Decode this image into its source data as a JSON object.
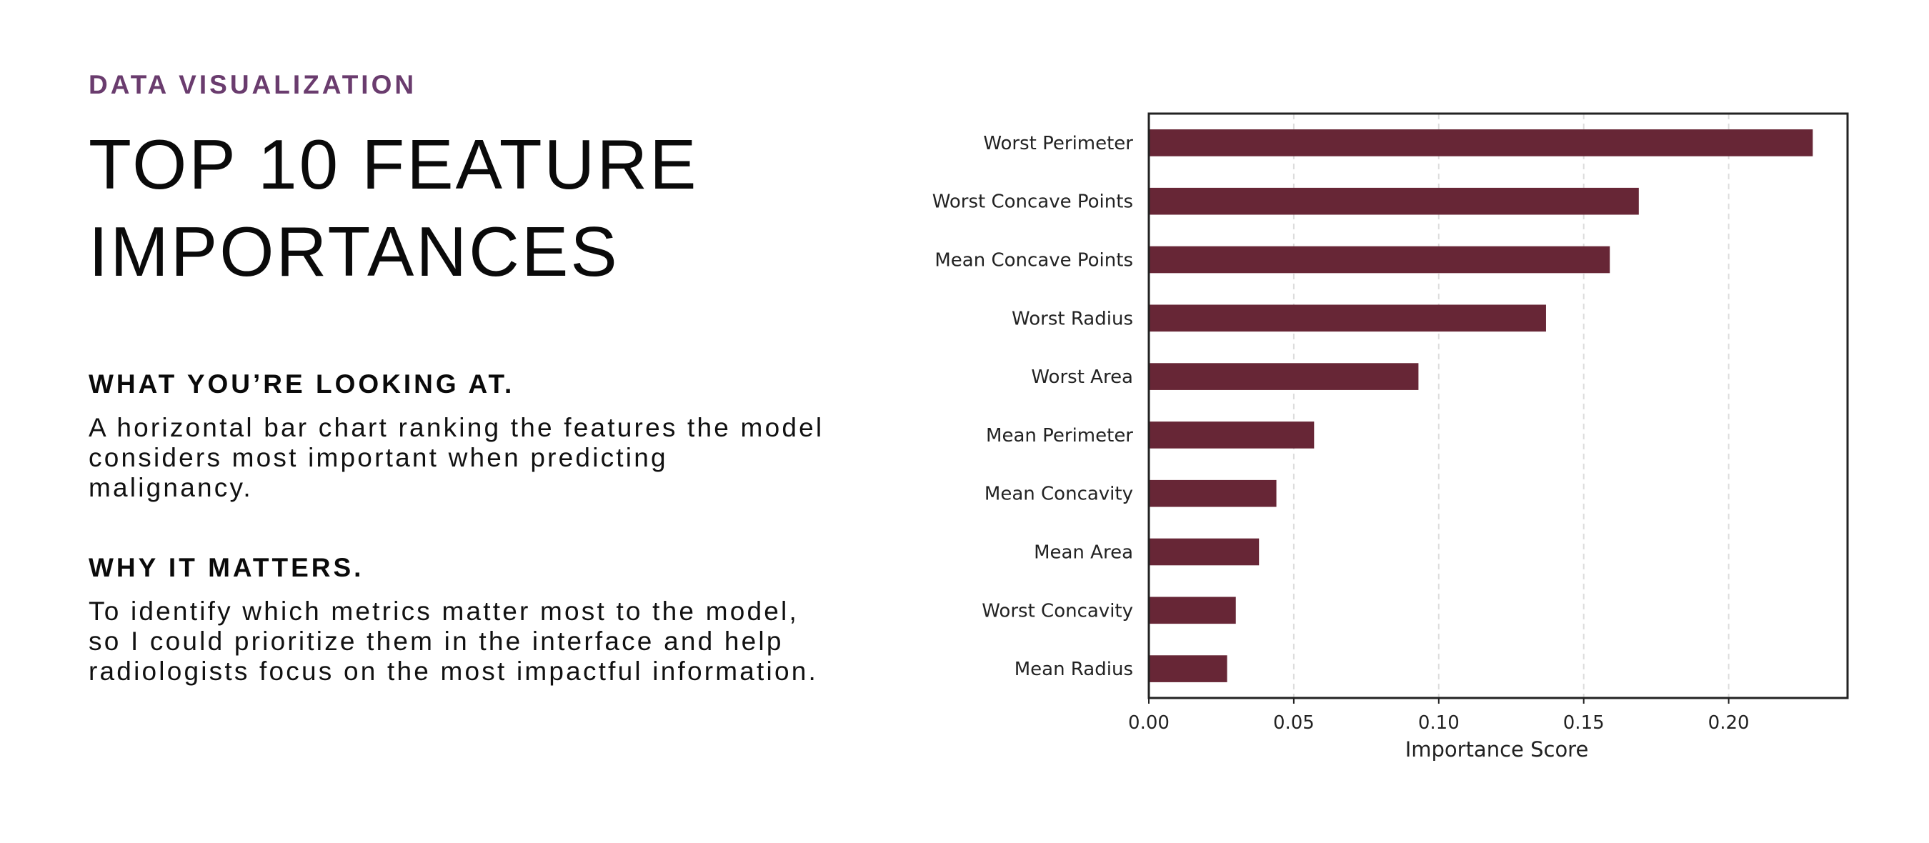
{
  "eyebrow": "DATA VISUALIZATION",
  "headline": "TOP 10 FEATURE\nIMPORTANCES",
  "sections": [
    {
      "title": "WHAT YOU’RE LOOKING AT.",
      "body": "A horizontal bar chart ranking the features the model considers most important when predicting malignancy."
    },
    {
      "title": "WHY IT MATTERS.",
      "body": "To identify which metrics matter most to the model, so I could prioritize them in the interface and help radiologists focus on the most impactful information."
    }
  ],
  "colors": {
    "accent": "#6a3c6e",
    "bar": "#672636",
    "text": "#0a0a0a",
    "grid": "#dddddd"
  },
  "chart_data": {
    "type": "bar",
    "orientation": "horizontal",
    "categories": [
      "Worst Perimeter",
      "Worst Concave Points",
      "Mean Concave Points",
      "Worst Radius",
      "Worst Area",
      "Mean Perimeter",
      "Mean Concavity",
      "Mean Area",
      "Worst Concavity",
      "Mean Radius"
    ],
    "values": [
      0.229,
      0.169,
      0.159,
      0.137,
      0.093,
      0.057,
      0.044,
      0.038,
      0.03,
      0.027
    ],
    "xlabel": "Importance Score",
    "ylabel": "",
    "title": "",
    "xlim": [
      0,
      0.241
    ],
    "xticks": [
      0.0,
      0.05,
      0.1,
      0.15,
      0.2
    ],
    "xtick_labels": [
      "0.00",
      "0.05",
      "0.10",
      "0.15",
      "0.20"
    ],
    "grid": "vertical dashed",
    "legend": "none"
  }
}
